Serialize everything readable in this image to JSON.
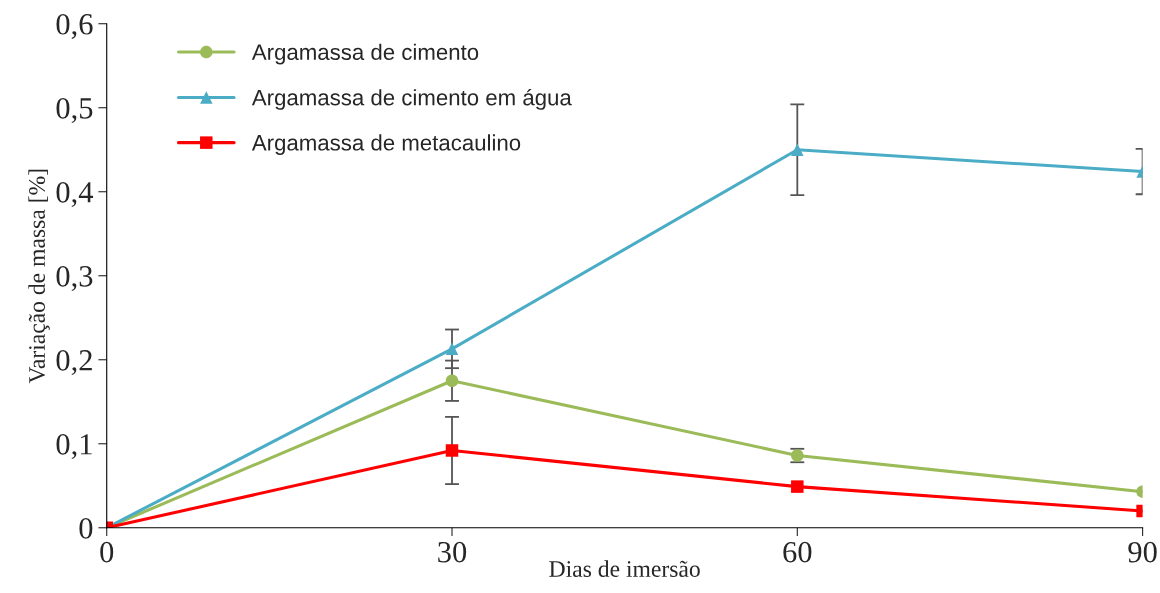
{
  "chart_data": {
    "type": "line",
    "xlabel": "Dias de imersão",
    "ylabel": "Variação de massa [%]",
    "x": [
      0,
      30,
      60,
      90
    ],
    "series": [
      {
        "name": "Argamassa de cimento",
        "color": "#9bbb59",
        "marker": "circle",
        "values": [
          0,
          0.175,
          0.086,
          0.043
        ],
        "errors": [
          null,
          0.024,
          0.008,
          null
        ]
      },
      {
        "name": "Argamassa de cimento em água",
        "color": "#4bacc6",
        "marker": "triangle",
        "values": [
          0,
          0.213,
          0.45,
          0.424
        ],
        "errors": [
          null,
          0.023,
          0.054,
          0.027
        ]
      },
      {
        "name": "Argamassa de metacaulino",
        "color": "#ff0000",
        "marker": "square",
        "values": [
          0,
          0.092,
          0.049,
          0.02
        ],
        "errors": [
          null,
          0.04,
          null,
          null
        ]
      }
    ],
    "xlim": [
      0,
      90
    ],
    "xticks": [
      0,
      30,
      60,
      90
    ],
    "ylim": [
      0,
      0.6
    ],
    "yticks": [
      0,
      {
        "value": 0.1,
        "label": "0,1"
      },
      {
        "value": 0.2,
        "label": "0,2"
      },
      {
        "value": 0.3,
        "label": "0,3"
      },
      {
        "value": 0.4,
        "label": "0,4"
      },
      {
        "value": 0.5,
        "label": "0,5"
      },
      {
        "value": 0.6,
        "label": "0,6"
      }
    ],
    "grid": false,
    "legend": "top left",
    "line_style": "solid"
  }
}
